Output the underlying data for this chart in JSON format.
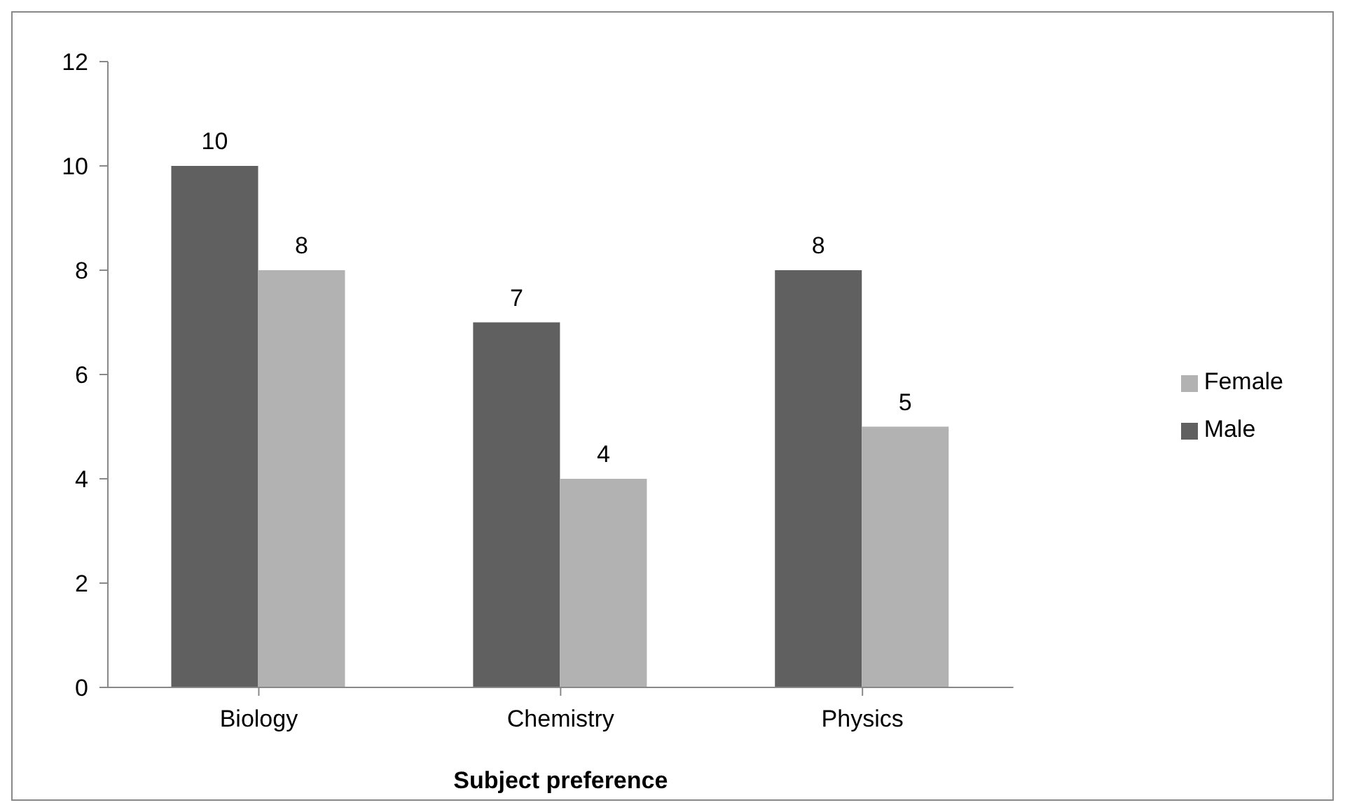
{
  "chart_data": {
    "type": "bar",
    "xlabel": "Subject preference",
    "categories": [
      "Biology",
      "Chemistry",
      "Physics"
    ],
    "series": [
      {
        "name": "Male",
        "color": "#606060",
        "values": [
          10,
          7,
          8
        ]
      },
      {
        "name": "Female",
        "color": "#b2b2b2",
        "values": [
          8,
          4,
          5
        ]
      }
    ],
    "ylim": [
      0,
      12
    ],
    "yticks": [
      0,
      2,
      4,
      6,
      8,
      10,
      12
    ],
    "grid": false,
    "legend": "right",
    "data_labels": true
  }
}
